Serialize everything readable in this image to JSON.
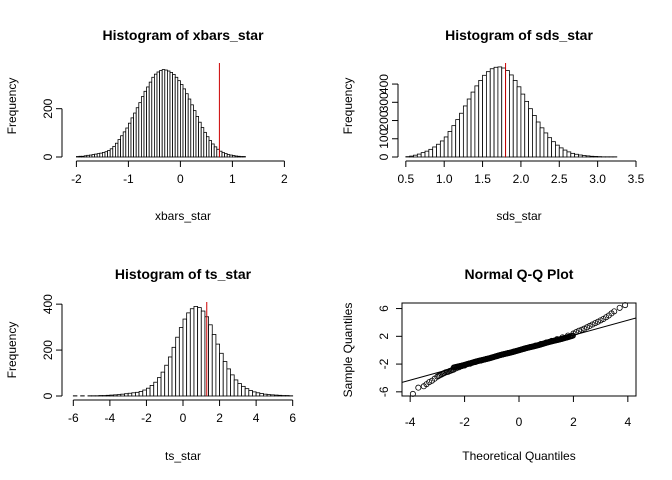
{
  "chart_data": [
    {
      "type": "bar",
      "title": "Histogram of xbars_star",
      "xlabel": "xbars_star",
      "ylabel": "Frequency",
      "xlim": [
        -2.2,
        2.3
      ],
      "ylim": [
        0,
        385
      ],
      "xticks": [
        "-2",
        "-1",
        "0",
        "1",
        "2"
      ],
      "yticks": [
        "0",
        "200"
      ],
      "bin_start": -2.0,
      "bin_width": 0.05,
      "values": [
        2,
        3,
        3,
        5,
        7,
        8,
        10,
        12,
        14,
        16,
        19,
        22,
        27,
        34,
        44,
        57,
        72,
        88,
        104,
        120,
        140,
        162,
        182,
        204,
        225,
        250,
        272,
        290,
        310,
        330,
        343,
        352,
        358,
        362,
        360,
        356,
        350,
        342,
        330,
        316,
        300,
        282,
        262,
        240,
        216,
        192,
        168,
        144,
        122,
        102,
        84,
        68,
        54,
        42,
        32,
        24,
        18,
        14,
        10,
        8,
        6,
        4,
        3,
        2,
        2
      ],
      "reference_line": {
        "x": 0.75,
        "color": "#cc0000"
      }
    },
    {
      "type": "bar",
      "title": "Histogram of sds_star",
      "xlabel": "sds_star",
      "ylabel": "Frequency",
      "xlim": [
        0.45,
        3.5
      ],
      "ylim": [
        0,
        510
      ],
      "xticks": [
        "0.5",
        "1.0",
        "1.5",
        "2.0",
        "2.5",
        "3.0",
        "3.5"
      ],
      "yticks": [
        "0",
        "100",
        "200",
        "300",
        "400"
      ],
      "bin_start": 0.5,
      "bin_width": 0.05,
      "values": [
        2,
        5,
        10,
        16,
        24,
        32,
        42,
        55,
        70,
        88,
        110,
        140,
        172,
        205,
        240,
        280,
        318,
        356,
        390,
        420,
        448,
        468,
        484,
        492,
        494,
        488,
        474,
        450,
        420,
        385,
        345,
        305,
        265,
        228,
        192,
        160,
        132,
        106,
        84,
        65,
        50,
        38,
        28,
        20,
        15,
        11,
        8,
        6,
        4,
        3,
        2,
        1,
        1,
        1,
        1,
        0,
        0,
        0,
        0,
        0
      ],
      "reference_line": {
        "x": 1.8,
        "color": "#cc0000"
      }
    },
    {
      "type": "bar",
      "title": "Histogram of ts_star",
      "xlabel": "ts_star",
      "ylabel": "Frequency",
      "xlim": [
        -6.4,
        6.4
      ],
      "ylim": [
        0,
        405
      ],
      "xticks": [
        "-6",
        "-4",
        "-2",
        "0",
        "2",
        "4",
        "6"
      ],
      "yticks": [
        "0",
        "200",
        "400"
      ],
      "bin_start": -6.0,
      "bin_width": 0.2,
      "values": [
        1,
        0,
        1,
        0,
        1,
        1,
        1,
        2,
        2,
        3,
        4,
        5,
        6,
        8,
        10,
        12,
        14,
        16,
        20,
        26,
        34,
        46,
        60,
        80,
        104,
        134,
        170,
        212,
        256,
        298,
        335,
        362,
        380,
        390,
        385,
        370,
        345,
        310,
        268,
        226,
        186,
        150,
        118,
        92,
        70,
        54,
        42,
        32,
        24,
        18,
        14,
        11,
        8,
        6,
        5,
        4,
        3,
        2,
        2,
        1
      ],
      "reference_line": {
        "x": 1.3,
        "color": "#cc0000"
      }
    },
    {
      "type": "scatter",
      "title": "Normal Q-Q Plot",
      "xlabel": "Theoretical Quantiles",
      "ylabel": "Sample Quantiles",
      "xlim": [
        -4.3,
        4.3
      ],
      "ylim": [
        -6.6,
        6.8
      ],
      "xticks": [
        "-4",
        "-2",
        "0",
        "2",
        "4"
      ],
      "yticks": [
        "-6",
        "-2",
        "2",
        "6"
      ],
      "x": [
        -3.9,
        -3.7,
        -3.5,
        -3.4,
        -3.3,
        -3.2,
        -3.1,
        -3.0,
        -2.95,
        -2.9,
        -2.85,
        -2.8,
        -2.75,
        -2.7,
        -2.65,
        -2.6,
        -2.55,
        -2.5,
        -2.45,
        -2.4,
        -2.3,
        -2.2,
        -2.1,
        -2.0,
        -1.8,
        -1.6,
        -1.4,
        -1.2,
        -1.0,
        -0.8,
        -0.6,
        -0.4,
        -0.2,
        0,
        0.2,
        0.4,
        0.6,
        0.8,
        1.0,
        1.2,
        1.4,
        1.6,
        1.8,
        2.0,
        2.1,
        2.2,
        2.3,
        2.4,
        2.5,
        2.6,
        2.7,
        2.8,
        2.9,
        3.0,
        3.1,
        3.2,
        3.3,
        3.4,
        3.5,
        3.7,
        3.9
      ],
      "y": [
        -6.3,
        -5.4,
        -5.2,
        -4.9,
        -4.6,
        -4.4,
        -4.1,
        -3.8,
        -3.7,
        -3.6,
        -3.5,
        -3.4,
        -3.3,
        -3.2,
        -3.15,
        -3.1,
        -3.0,
        -2.95,
        -2.85,
        -2.8,
        -2.6,
        -2.45,
        -2.3,
        -2.2,
        -1.95,
        -1.7,
        -1.5,
        -1.25,
        -1.05,
        -0.85,
        -0.6,
        -0.4,
        -0.2,
        0,
        0.2,
        0.45,
        0.65,
        0.9,
        1.1,
        1.35,
        1.6,
        1.85,
        2.1,
        2.4,
        2.6,
        2.8,
        2.95,
        3.1,
        3.3,
        3.5,
        3.7,
        3.9,
        4.1,
        4.3,
        4.5,
        4.75,
        5.0,
        5.3,
        5.6,
        6.1,
        6.5
      ],
      "ref_line": {
        "intercept": 0.0,
        "slope": 1.08
      }
    }
  ]
}
